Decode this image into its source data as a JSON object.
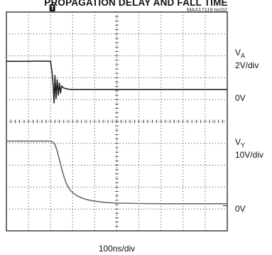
{
  "title": "PROPAGATION DELAY AND FALL TIME",
  "figure_id": "MAX17119 toc02",
  "trigger_marker": "T",
  "right_labels": [
    {
      "line1": "V",
      "sub": "A",
      "line2": "2V/div"
    },
    {
      "line1": "0V",
      "sub": "",
      "line2": ""
    },
    {
      "line1": "V",
      "sub": "Y",
      "line2": "10V/div"
    },
    {
      "line1": "0V",
      "sub": "",
      "line2": ""
    }
  ],
  "colors": {
    "trace_a": "#222222",
    "trace_y": "#6b6b6b",
    "grid": "#333333",
    "background": "#ffffff"
  },
  "chart_data": {
    "type": "line",
    "title": "PROPAGATION DELAY AND FALL TIME",
    "xlabel": "100ns/div",
    "x_divisions": 10,
    "y_divisions": 10,
    "grid": true,
    "series": [
      {
        "name": "VA",
        "scale": "2V/div",
        "zero_div_from_top": 3.55,
        "x": [
          0,
          0.5,
          1,
          1.5,
          2.0,
          2.08,
          2.12,
          2.16,
          2.2,
          2.25,
          2.3,
          2.35,
          2.4,
          2.45,
          2.5,
          2.6,
          2.7,
          2.8,
          3,
          3.5,
          4,
          5,
          6,
          7,
          8,
          9,
          10
        ],
        "values": [
          2.6,
          2.6,
          2.6,
          2.62,
          2.6,
          1.4,
          0.3,
          -1.2,
          1.3,
          -0.8,
          0.9,
          -0.5,
          0.6,
          -0.3,
          0.35,
          0.15,
          0.1,
          0.05,
          0.02,
          0.02,
          0.02,
          0.02,
          0.02,
          0.02,
          0.02,
          0.02,
          0.02
        ]
      },
      {
        "name": "VY",
        "scale": "10V/div",
        "zero_div_from_top": 8.85,
        "x": [
          0,
          0.5,
          1,
          1.5,
          2.0,
          2.1,
          2.2,
          2.3,
          2.4,
          2.5,
          2.6,
          2.7,
          2.8,
          2.9,
          3.0,
          3.2,
          3.5,
          3.8,
          4.2,
          4.6,
          5,
          6,
          7,
          8,
          9,
          10
        ],
        "values": [
          29.5,
          29.5,
          29.5,
          29.5,
          29.5,
          29.0,
          28.0,
          25.0,
          21.0,
          17.0,
          13.5,
          10.5,
          8.5,
          7.0,
          6.0,
          4.5,
          3.2,
          2.4,
          1.8,
          1.4,
          1.2,
          1.0,
          0.9,
          0.9,
          0.9,
          0.9
        ]
      }
    ]
  }
}
